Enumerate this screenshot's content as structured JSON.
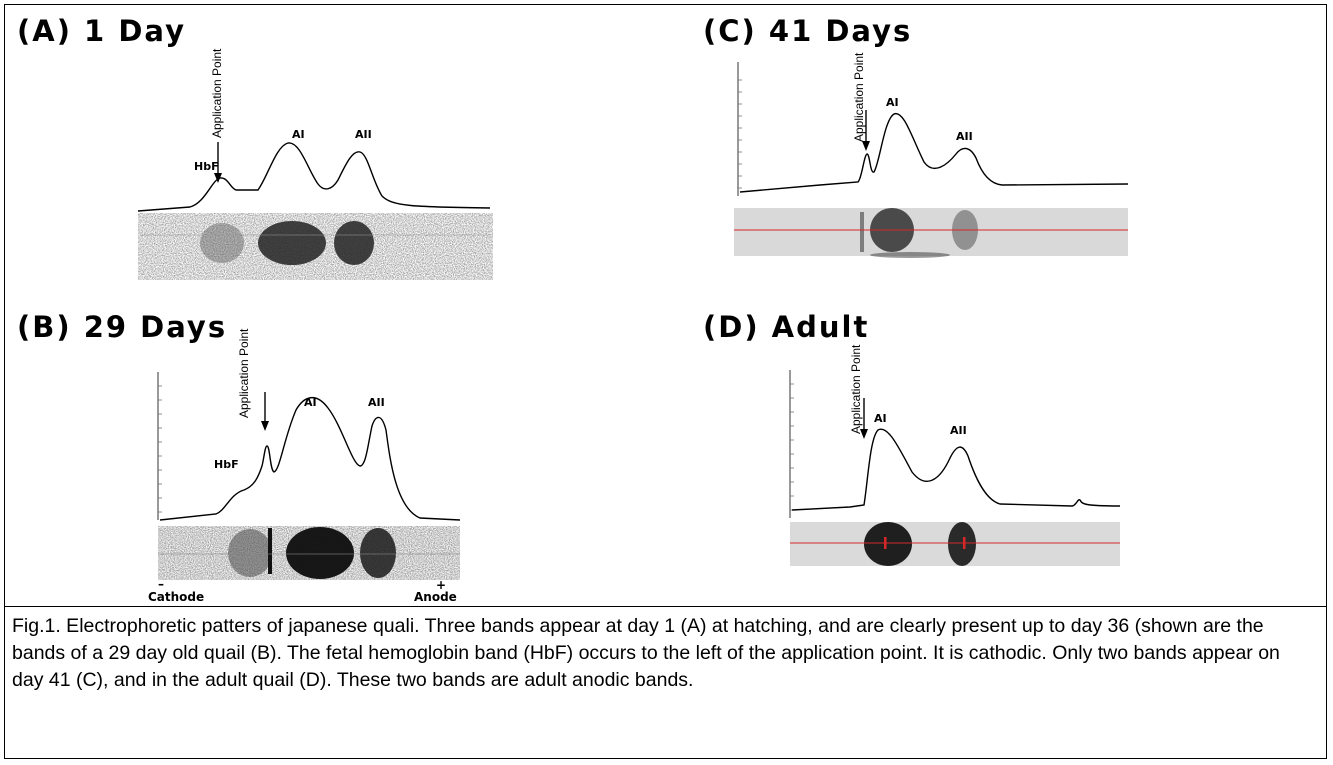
{
  "panels": {
    "a": {
      "title": "(A) 1 Day",
      "application_label": "Application Point",
      "peaks": [
        "HbF",
        "AI",
        "AII"
      ]
    },
    "b": {
      "title": "(B) 29 Days",
      "application_label": "Application Point",
      "peaks": [
        "HbF",
        "AI",
        "AII"
      ],
      "cathode_sign": "–",
      "cathode_label": "Cathode",
      "anode_sign": "+",
      "anode_label": "Anode"
    },
    "c": {
      "title": "(C) 41 Days",
      "application_label": "Application Point",
      "peaks": [
        "AI",
        "AII"
      ]
    },
    "d": {
      "title": "(D) Adult",
      "application_label": "Application Point",
      "peaks": [
        "AI",
        "AII"
      ]
    }
  },
  "caption": "Fig.1.  Electrophoretic patters of japanese quali.  Three bands appear at day 1 (A) at hatching, and are clearly present up to day 36 (shown are the bands of a 29 day old quail (B).  The fetal hemoglobin band (HbF) occurs to the left of the application point.  It is cathodic.  Only two bands appear on day 41 (C), and in the adult quail (D).  These two bands are adult anodic bands.",
  "colors": {
    "scan_line": "#d62828",
    "gel_light": "#dadada",
    "gel_dark": "#0a0a0a"
  }
}
